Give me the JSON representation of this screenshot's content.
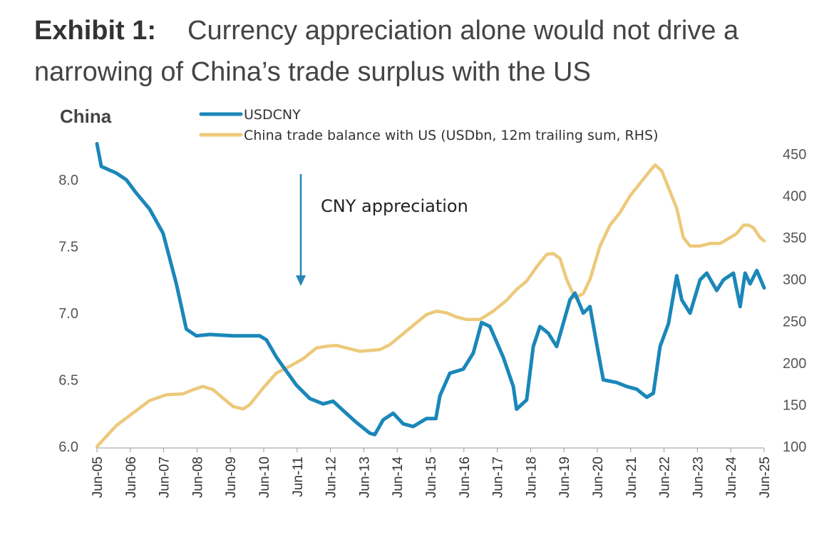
{
  "header": {
    "exhibit_label": "Exhibit 1:",
    "title": "Currency appreciation alone would not drive a narrowing of China’s trade surplus with the US"
  },
  "colors": {
    "usdcny": "#1a87b9",
    "trade_balance": "#ecc97a",
    "arrow": "#2586b6"
  },
  "chart_data": {
    "type": "line",
    "panel_label": "China",
    "annotation": "CNY appreciation",
    "x_tick_labels": [
      "Jun-05",
      "Jun-06",
      "Jun-07",
      "Jun-08",
      "Jun-09",
      "Jun-10",
      "Jun-11",
      "Jun-12",
      "Jun-13",
      "Jun-14",
      "Jun-15",
      "Jun-16",
      "Jun-17",
      "Jun-18",
      "Jun-19",
      "Jun-20",
      "Jun-21",
      "Jun-22",
      "Jun-23",
      "Jun-24",
      "Jun-25"
    ],
    "xlim": [
      2005.42,
      2025.42
    ],
    "y_left": {
      "lim": [
        6.0,
        8.2
      ],
      "ticks": [
        "6.0",
        "6.5",
        "7.0",
        "7.5",
        "8.0"
      ]
    },
    "y_right": {
      "lim": [
        100,
        455
      ],
      "ticks": [
        "100",
        "150",
        "200",
        "250",
        "300",
        "350",
        "400",
        "450"
      ]
    },
    "legend_position": "top",
    "series": [
      {
        "name": "USDCNY",
        "axis": "left",
        "x": [
          2005.42,
          2005.55,
          2006.0,
          2006.3,
          2006.6,
          2007.0,
          2007.4,
          2007.8,
          2008.1,
          2008.4,
          2008.8,
          2009.5,
          2010.0,
          2010.3,
          2010.5,
          2010.8,
          2011.0,
          2011.4,
          2011.8,
          2012.2,
          2012.5,
          2012.8,
          2013.2,
          2013.6,
          2013.75,
          2014.0,
          2014.3,
          2014.6,
          2014.9,
          2015.3,
          2015.58,
          2015.7,
          2016.0,
          2016.4,
          2016.7,
          2016.95,
          2017.2,
          2017.6,
          2017.9,
          2018.0,
          2018.3,
          2018.5,
          2018.7,
          2018.95,
          2019.2,
          2019.6,
          2019.75,
          2020.0,
          2020.2,
          2020.45,
          2020.6,
          2021.0,
          2021.3,
          2021.6,
          2021.9,
          2022.1,
          2022.3,
          2022.55,
          2022.8,
          2022.95,
          2023.2,
          2023.5,
          2023.7,
          2024.0,
          2024.2,
          2024.5,
          2024.7,
          2024.85,
          2025.0,
          2025.2,
          2025.42
        ],
        "values": [
          8.27,
          8.1,
          8.05,
          8.0,
          7.9,
          7.78,
          7.6,
          7.22,
          6.88,
          6.83,
          6.84,
          6.83,
          6.83,
          6.83,
          6.8,
          6.67,
          6.6,
          6.46,
          6.36,
          6.32,
          6.34,
          6.27,
          6.18,
          6.1,
          6.09,
          6.2,
          6.25,
          6.17,
          6.15,
          6.21,
          6.21,
          6.38,
          6.55,
          6.58,
          6.7,
          6.93,
          6.9,
          6.67,
          6.45,
          6.28,
          6.35,
          6.75,
          6.9,
          6.85,
          6.75,
          7.1,
          7.15,
          7.0,
          7.05,
          6.7,
          6.5,
          6.48,
          6.45,
          6.43,
          6.37,
          6.4,
          6.75,
          6.92,
          7.28,
          7.1,
          7.0,
          7.25,
          7.3,
          7.17,
          7.25,
          7.3,
          7.05,
          7.3,
          7.22,
          7.32,
          7.19
        ]
      },
      {
        "name": "China trade balance with US (USDbn, 12m trailing sum, RHS)",
        "axis": "right",
        "x": [
          2005.42,
          2006.0,
          2006.5,
          2007.0,
          2007.5,
          2008.0,
          2008.3,
          2008.6,
          2008.9,
          2009.2,
          2009.5,
          2009.8,
          2010.0,
          2010.4,
          2010.8,
          2011.2,
          2011.6,
          2012.0,
          2012.3,
          2012.6,
          2012.9,
          2013.3,
          2013.6,
          2013.9,
          2014.2,
          2014.6,
          2014.9,
          2015.3,
          2015.6,
          2015.9,
          2016.2,
          2016.5,
          2016.9,
          2017.3,
          2017.7,
          2018.0,
          2018.3,
          2018.6,
          2018.9,
          2019.1,
          2019.3,
          2019.5,
          2019.75,
          2020.0,
          2020.2,
          2020.5,
          2020.8,
          2021.1,
          2021.4,
          2021.7,
          2022.0,
          2022.15,
          2022.35,
          2022.55,
          2022.8,
          2023.0,
          2023.2,
          2023.5,
          2023.8,
          2024.1,
          2024.4,
          2024.6,
          2024.8,
          2024.95,
          2025.1,
          2025.3,
          2025.42
        ],
        "values": [
          100,
          125,
          140,
          155,
          162,
          163,
          168,
          172,
          168,
          158,
          148,
          145,
          150,
          170,
          188,
          196,
          205,
          218,
          220,
          221,
          218,
          214,
          215,
          216,
          222,
          235,
          245,
          258,
          262,
          260,
          255,
          252,
          252,
          262,
          275,
          288,
          298,
          315,
          330,
          331,
          325,
          300,
          278,
          283,
          300,
          340,
          365,
          380,
          400,
          415,
          430,
          437,
          430,
          410,
          385,
          350,
          340,
          340,
          343,
          343,
          350,
          355,
          365,
          365,
          362,
          350,
          346
        ]
      }
    ]
  }
}
